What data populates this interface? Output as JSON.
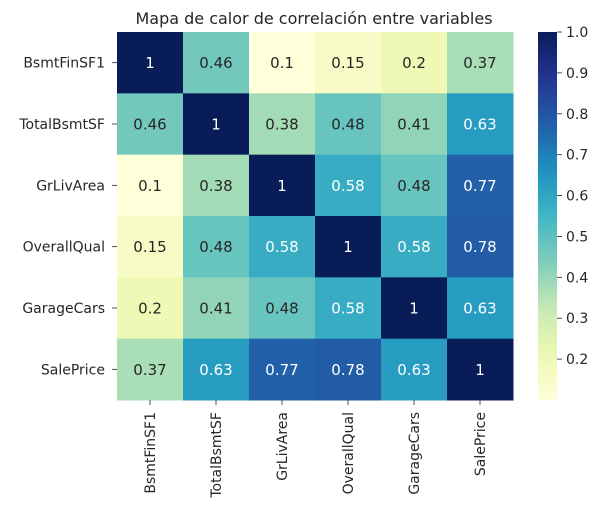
{
  "chart_data": {
    "type": "heatmap",
    "title": "Mapa de calor de correlación entre variables",
    "xlabel": "",
    "ylabel": "",
    "rows": [
      "BsmtFinSF1",
      "TotalBsmtSF",
      "GrLivArea",
      "OverallQual",
      "GarageCars",
      "SalePrice"
    ],
    "columns": [
      "BsmtFinSF1",
      "TotalBsmtSF",
      "GrLivArea",
      "OverallQual",
      "GarageCars",
      "SalePrice"
    ],
    "values": [
      [
        1,
        0.46,
        0.1,
        0.15,
        0.2,
        0.37
      ],
      [
        0.46,
        1,
        0.38,
        0.48,
        0.41,
        0.63
      ],
      [
        0.1,
        0.38,
        1,
        0.58,
        0.48,
        0.77
      ],
      [
        0.15,
        0.48,
        0.58,
        1,
        0.58,
        0.78
      ],
      [
        0.2,
        0.41,
        0.48,
        0.58,
        1,
        0.63
      ],
      [
        0.37,
        0.63,
        0.77,
        0.78,
        0.63,
        1
      ]
    ],
    "annotated": true,
    "colormap": "YlGnBu",
    "colorbar": {
      "min": 0.1,
      "max": 1.0,
      "ticks": [
        0.2,
        0.3,
        0.4,
        0.5,
        0.6,
        0.7,
        0.8,
        0.9,
        1.0
      ],
      "tick_labels": [
        "0.2",
        "0.3",
        "0.4",
        "0.5",
        "0.6",
        "0.7",
        "0.8",
        "0.9",
        "1.0"
      ],
      "placement": "right"
    },
    "grid": false
  }
}
